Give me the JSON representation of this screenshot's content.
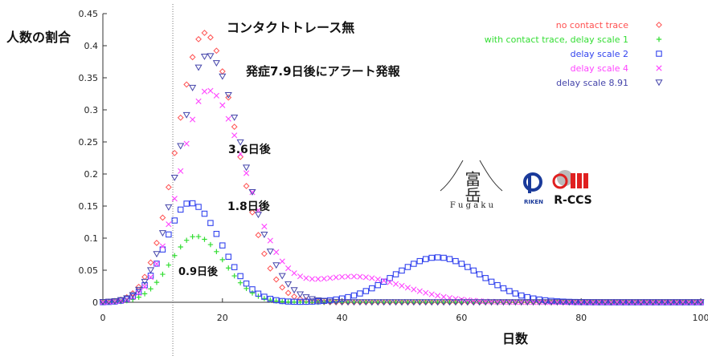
{
  "chart_data": {
    "type": "scatter",
    "ylabel": "人数の割合",
    "xlabel": "日数",
    "xlim": [
      0,
      100
    ],
    "ylim": [
      0,
      0.45
    ],
    "xticks": [
      0,
      20,
      40,
      60,
      80,
      100
    ],
    "yticks": [
      0,
      0.05,
      0.1,
      0.15,
      0.2,
      0.25,
      0.3,
      0.35,
      0.4,
      0.45
    ],
    "ytick_labels": [
      "0",
      "0.05",
      "0.1",
      "0.15",
      "0.2",
      "0.25",
      "0.3",
      "0.35",
      "0.4",
      "0.45"
    ],
    "xtick_labels": [
      "0",
      "20",
      "40",
      "60",
      "80",
      "100"
    ],
    "grid": false,
    "legend_position": "top-right",
    "reference_line_x": 11.7,
    "series": [
      {
        "name": "no contact trace",
        "color": "#ff5050",
        "marker": "diamond",
        "peak": 0.42,
        "center": 17,
        "sigma_left": 4.6,
        "sigma_right": 5.4
      },
      {
        "name": "with contact trace, delay scale 1",
        "color": "#33dd33",
        "marker": "plus",
        "peak": 0.103,
        "center": 15.5,
        "sigma_left": 4.2,
        "sigma_right": 4.8
      },
      {
        "name": "delay scale 2",
        "color": "#3344ee",
        "marker": "square",
        "peak": 0.155,
        "center": 14.5,
        "sigma_left": 4.0,
        "sigma_right": 5.2,
        "second_peak": 0.07,
        "second_center": 56,
        "second_sigma": 7.2
      },
      {
        "name": "delay scale 4",
        "color": "#ff44ff",
        "marker": "cross",
        "peak": 0.33,
        "center": 17.5,
        "sigma_left": 4.6,
        "sigma_right": 6.4,
        "second_peak": 0.04,
        "second_center": 42,
        "second_sigma": 8.5
      },
      {
        "name": "delay scale 8.91",
        "color": "#4444aa",
        "marker": "triangle",
        "peak": 0.385,
        "center": 17.5,
        "sigma_left": 4.7,
        "sigma_right": 5.9
      }
    ],
    "annotations": [
      {
        "id": "no-trace",
        "text": "コンタクトトレース無"
      },
      {
        "id": "alert-7-9",
        "text": "発症7.9日後にアラート発報"
      },
      {
        "id": "day-3-6",
        "text": "3.6日後"
      },
      {
        "id": "day-1-8",
        "text": "1.8日後"
      },
      {
        "id": "day-0-9",
        "text": "0.9日後"
      }
    ]
  },
  "logos": {
    "fugaku_kanji": "富岳",
    "fugaku_text": "F u g a k u",
    "riken_text": "RIKEN",
    "rccs_text": "R-CCS"
  }
}
